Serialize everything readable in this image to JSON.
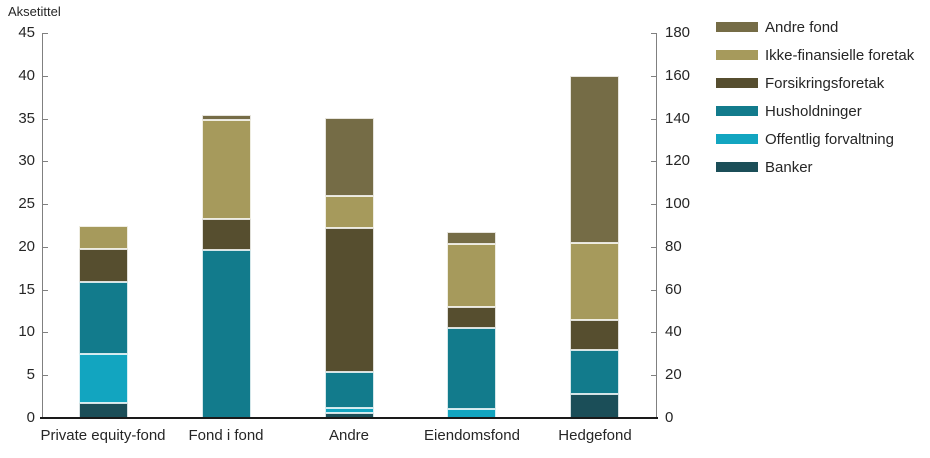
{
  "chart_data": {
    "type": "bar",
    "stacked": true,
    "title": "Aksetittel",
    "categories": [
      "Private equity-fond",
      "Fond i fond",
      "Andre",
      "Eiendomsfond",
      "Hedgefond"
    ],
    "series": [
      {
        "name": "Banker",
        "color": "#1B4E58",
        "values": [
          1.7,
          0,
          0.6,
          0,
          2.8
        ]
      },
      {
        "name": "Offentlig forvaltning",
        "color": "#12A5C0",
        "values": [
          5.8,
          0,
          0.6,
          1.1,
          0
        ]
      },
      {
        "name": "Husholdninger",
        "color": "#127B8C",
        "values": [
          8.4,
          19.6,
          4.2,
          9.4,
          5.2
        ]
      },
      {
        "name": "Forsikringsforetak",
        "color": "#564E2F",
        "values": [
          3.9,
          3.7,
          16.8,
          2.5,
          3.5
        ]
      },
      {
        "name": "Ikke-finansielle foretak",
        "color": "#A69A5C",
        "values": [
          2.7,
          11.5,
          3.8,
          7.4,
          8.9
        ]
      },
      {
        "name": "Andre fond",
        "color": "#756C46",
        "values": [
          0,
          0.6,
          9.1,
          1.4,
          19.6
        ]
      }
    ],
    "totals": [
      22.5,
      35.4,
      35.1,
      21.8,
      40.0
    ],
    "axes": {
      "left": {
        "title": "Aksetittel",
        "min": 0,
        "max": 45,
        "ticks": [
          0,
          5,
          10,
          15,
          20,
          25,
          30,
          35,
          40,
          45
        ]
      },
      "right": {
        "min": 0,
        "max": 180,
        "ticks": [
          0,
          20,
          40,
          60,
          80,
          100,
          120,
          140,
          160,
          180
        ]
      }
    },
    "grid": false,
    "legend": {
      "position": "right",
      "order_top_to_bottom": [
        "Andre fond",
        "Ikke-finansielle foretak",
        "Forsikringsforetak",
        "Husholdninger",
        "Offentlig forvaltning",
        "Banker"
      ]
    },
    "colors": {
      "axis_vertical": "#808080",
      "axis_bottom": "#1a1a1a",
      "text": "#262626",
      "background": "#ffffff",
      "segment_edge": "rgba(255,255,255,0.82)"
    }
  }
}
